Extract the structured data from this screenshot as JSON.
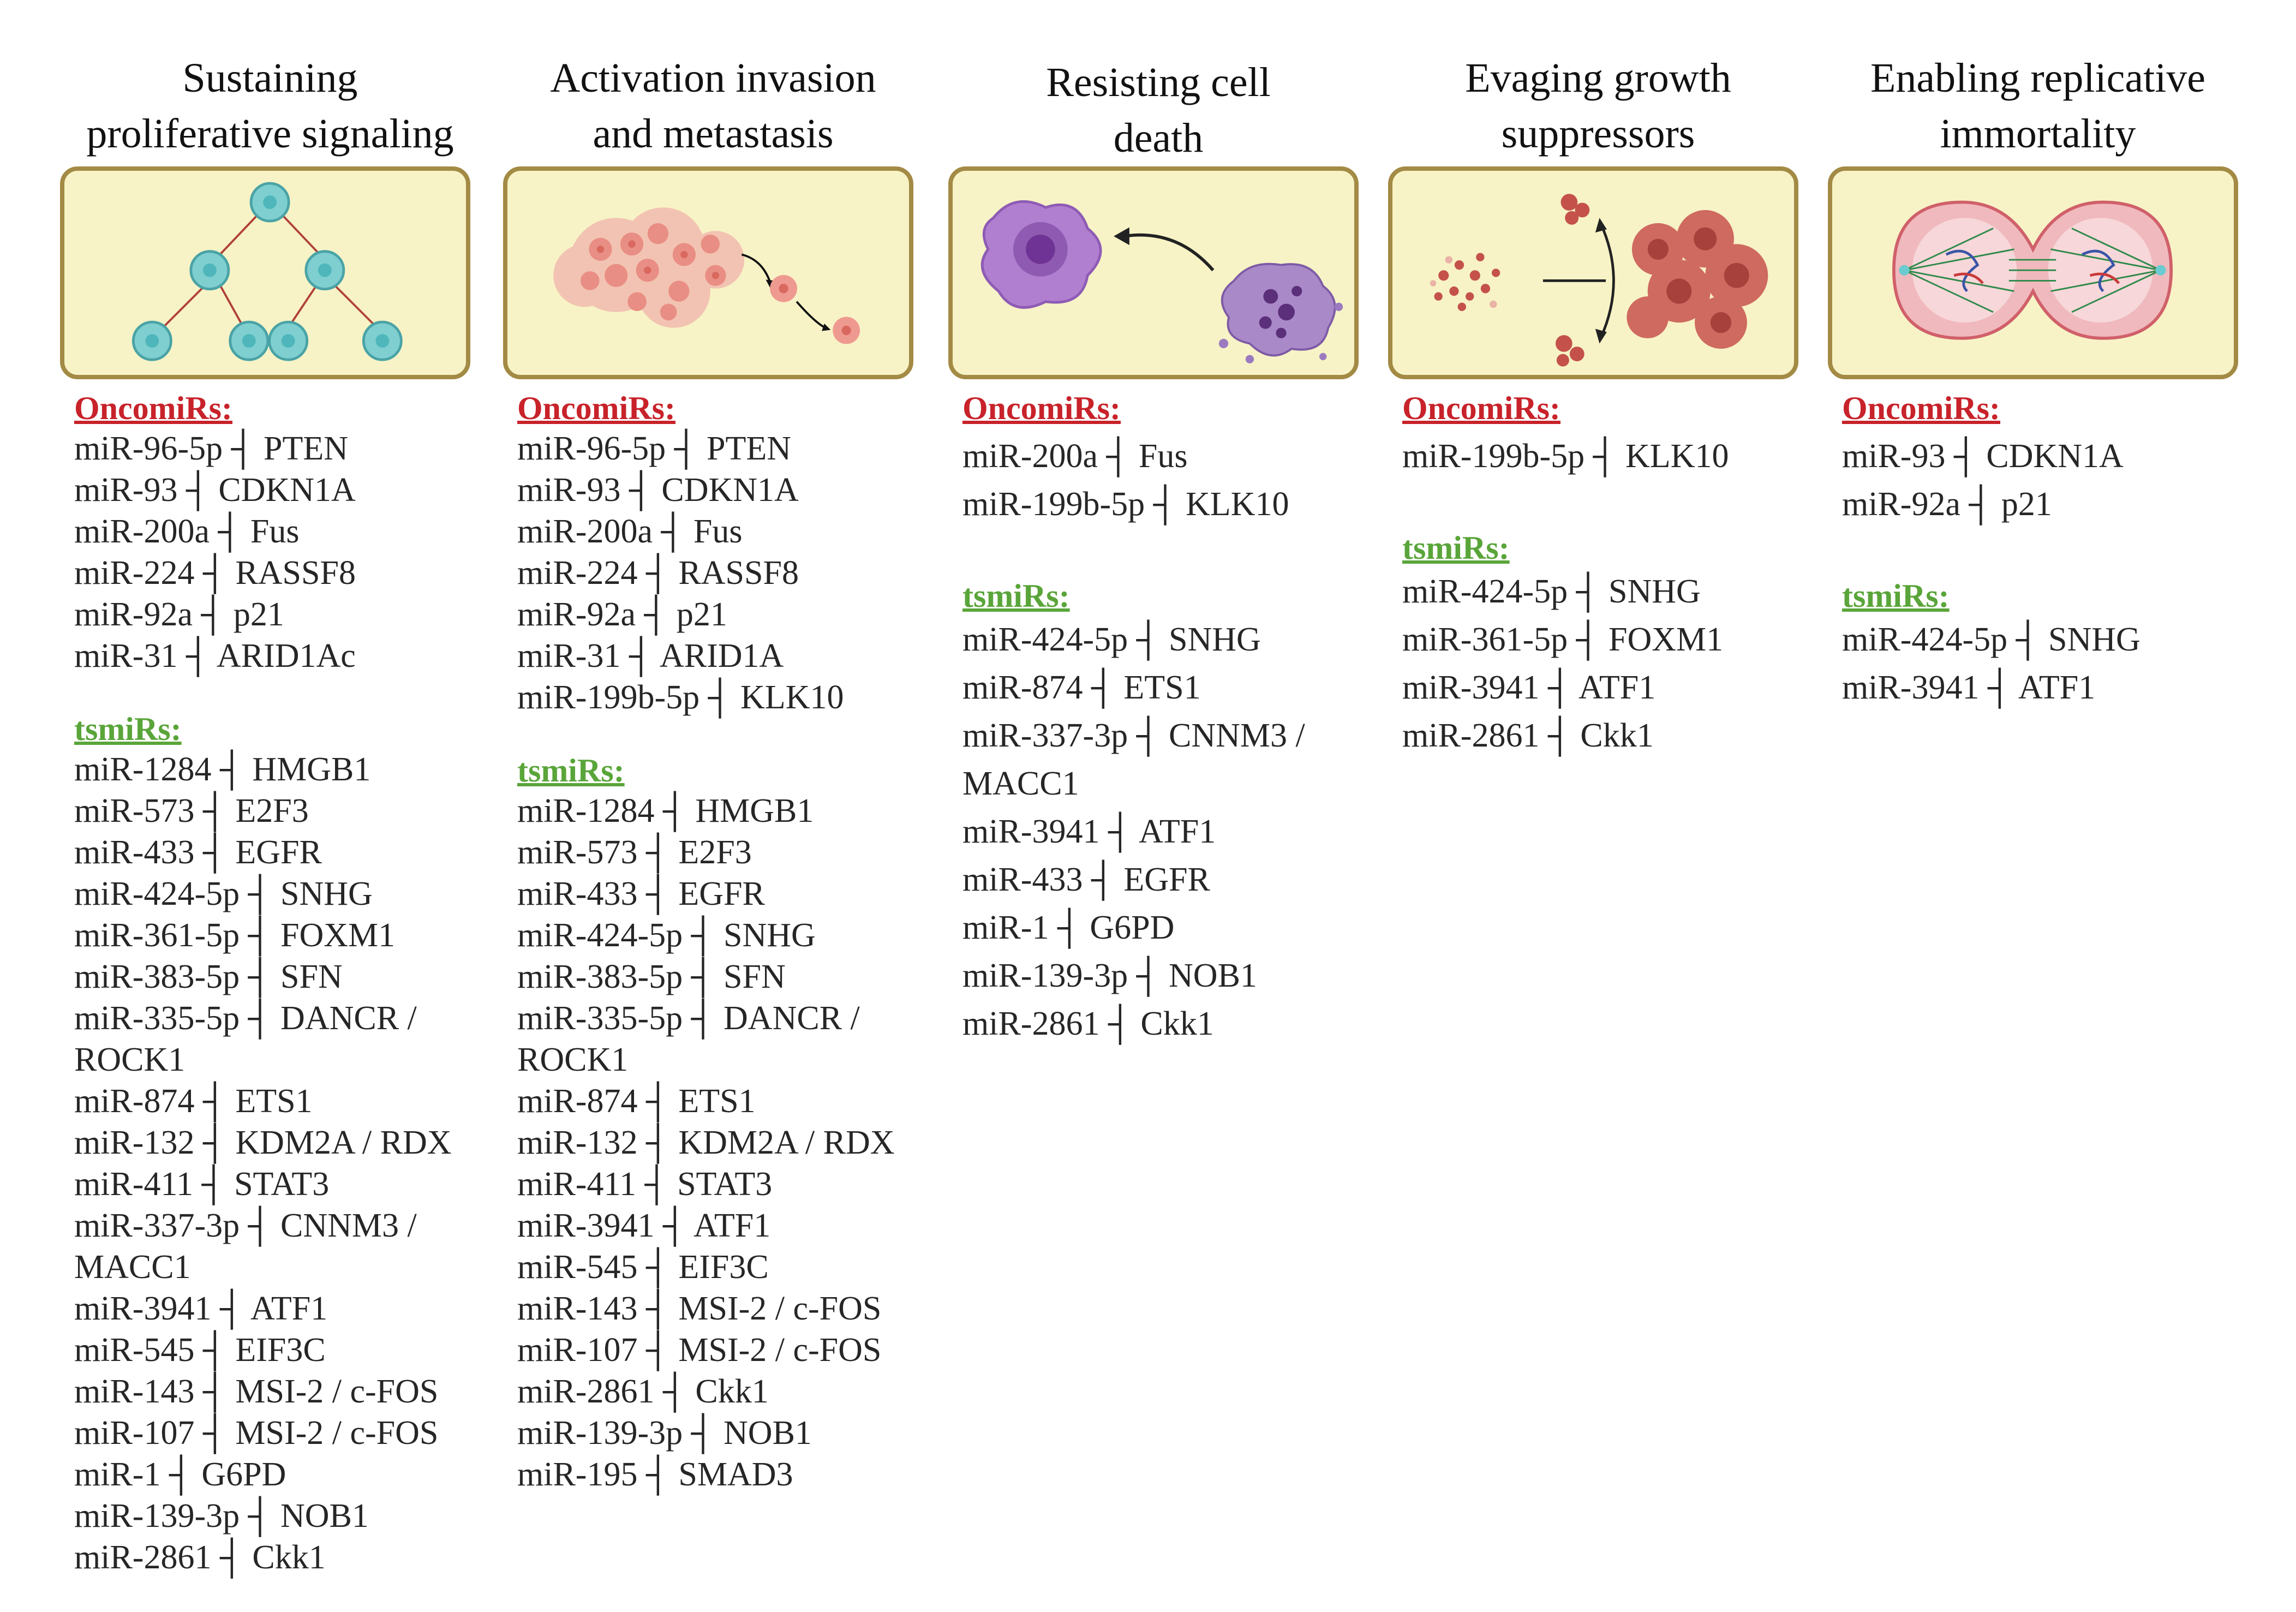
{
  "columns": [
    {
      "title_line1": "Sustaining",
      "title_line2": "proliferative signaling",
      "image": "cell-division-icon",
      "oncomirs_label": "OncomiRs:",
      "oncomirs": [
        "miR-96-5p ┤ PTEN",
        "miR-93 ┤ CDKN1A",
        "miR-200a ┤ Fus",
        "miR-224 ┤  RASSF8",
        "miR-92a ┤ p21",
        "miR-31 ┤ ARID1Ac"
      ],
      "tsmirs_label": "tsmiRs:",
      "tsmirs": [
        "miR-1284 ┤ HMGB1",
        "miR-573 ┤ E2F3",
        "miR-433 ┤ EGFR",
        "miR-424-5p ┤ SNHG",
        "miR-361-5p ┤ FOXM1",
        "miR-383-5p ┤ SFN",
        "miR-335-5p  ┤ DANCR /",
        "ROCK1",
        "miR-874 ┤ ETS1",
        "miR-132 ┤ KDM2A / RDX",
        "miR-411 ┤ STAT3",
        "miR-337-3p ┤ CNNM3 /",
        "MACC1",
        "miR-3941 ┤ ATF1",
        "miR-545 ┤ EIF3C",
        "miR-143 ┤ MSI-2 / c-FOS",
        "miR-107 ┤ MSI-2 / c-FOS",
        "miR-1 ┤ G6PD",
        "miR-139-3p ┤ NOB1",
        "miR-2861 ┤ Ckk1"
      ]
    },
    {
      "title_line1": "Activation invasion",
      "title_line2": "and metastasis",
      "image": "tumor-spread-icon",
      "oncomirs_label": "OncomiRs:",
      "oncomirs": [
        "miR-96-5p ┤ PTEN",
        "miR-93 ┤ CDKN1A",
        "miR-200a ┤ Fus",
        "miR-224 ┤  RASSF8",
        "miR-92a ┤ p21",
        "miR-31 ┤ ARID1A",
        "miR-199b-5p ┤ KLK10"
      ],
      "tsmirs_label": "tsmiRs:",
      "tsmirs": [
        "miR-1284 ┤ HMGB1",
        "miR-573 ┤ E2F3",
        "miR-433 ┤ EGFR",
        "miR-424-5p ┤ SNHG",
        "miR-383-5p ┤ SFN",
        "miR-335-5p  ┤ DANCR /",
        "ROCK1",
        "miR-874 ┤ ETS1",
        "miR-132 ┤ KDM2A / RDX",
        "miR-411 ┤ STAT3",
        "miR-3941 ┤ ATF1",
        "miR-545 ┤ EIF3C",
        "miR-143 ┤ MSI-2 / c-FOS",
        "miR-107 ┤ MSI-2 / c-FOS",
        "miR-2861 ┤ Ckk1",
        "miR-139-3p ┤ NOB1",
        "miR-195 ┤ SMAD3"
      ]
    },
    {
      "title_line1": "Resisting cell",
      "title_line2": "death",
      "image": "apoptosis-icon",
      "oncomirs_label": "OncomiRs:",
      "oncomirs": [
        "miR-200a ┤ Fus",
        "miR-199b-5p ┤ KLK10"
      ],
      "tsmirs_label": "tsmiRs:",
      "tsmirs": [
        "miR-424-5p ┤ SNHG",
        "miR-874 ┤ ETS1",
        "miR-337-3p ┤ CNNM3 /",
        "MACC1",
        "miR-3941 ┤ ATF1",
        "miR-433 ┤ EGFR",
        "miR-1 ┤ G6PD",
        "miR-139-3p ┤ NOB1",
        "miR-2861 ┤ Ckk1"
      ]
    },
    {
      "title_line1": "Evaging growth",
      "title_line2": "suppressors",
      "image": "growth-suppressor-icon",
      "oncomirs_label": "OncomiRs:",
      "oncomirs": [
        "miR-199b-5p ┤ KLK10"
      ],
      "tsmirs_label": "tsmiRs:",
      "tsmirs": [
        "miR-424-5p ┤ SNHG",
        "miR-361-5p ┤ FOXM1",
        "miR-3941 ┤ ATF1",
        "miR-2861 ┤ Ckk1"
      ]
    },
    {
      "title_line1": "Enabling replicative",
      "title_line2": "immortality",
      "image": "mitosis-icon",
      "oncomirs_label": "OncomiRs:",
      "oncomirs": [
        "miR-93 ┤ CDKN1A",
        "miR-92a ┤ p21"
      ],
      "tsmirs_label": "tsmiRs:",
      "tsmirs": [
        "miR-424-5p ┤ SNHG",
        "miR-3941 ┤ ATF1"
      ]
    }
  ],
  "colors": {
    "oncomirs": "#c8222a",
    "tsmirs": "#5aa53a",
    "panel_bg": "#f7f3c6",
    "panel_border": "#a38a45"
  }
}
